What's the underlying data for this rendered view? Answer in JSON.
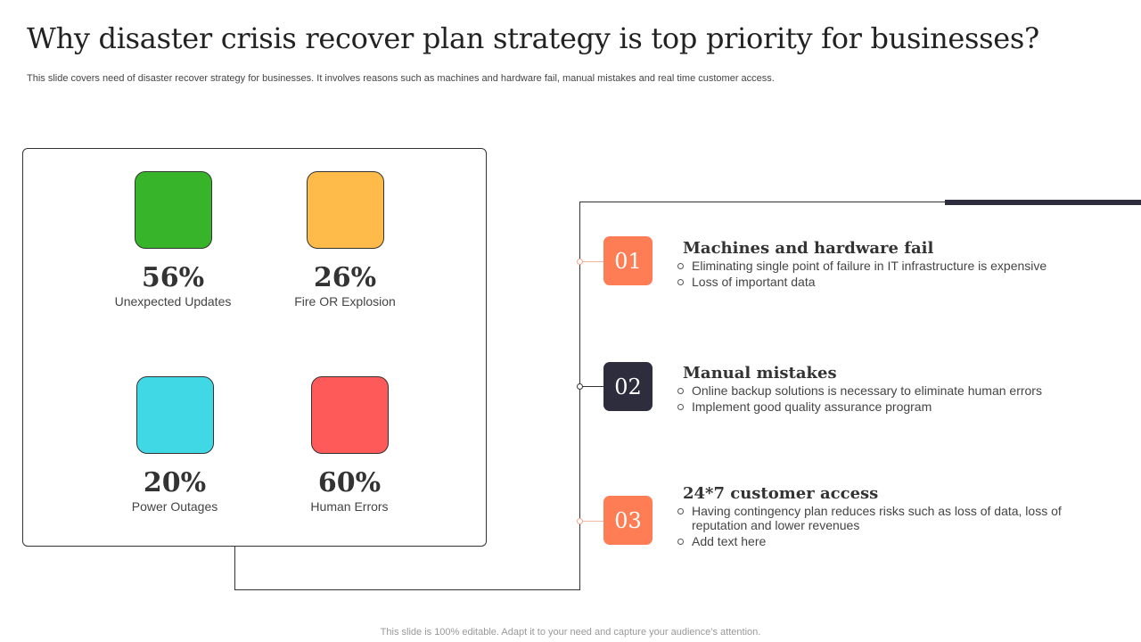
{
  "header": {
    "title": "Why disaster crisis recover plan strategy is top priority for businesses?",
    "subtitle": "This slide covers need of disaster recover strategy for businesses. It involves reasons such as machines and hardware fail, manual mistakes and real time customer access."
  },
  "stats": [
    {
      "value": "56%",
      "label": "Unexpected Updates",
      "color": "#38b42a"
    },
    {
      "value": "26%",
      "label": "Fire OR Explosion",
      "color": "#ffbb4a"
    },
    {
      "value": "20%",
      "label": "Power Outages",
      "color": "#41d8e5"
    },
    {
      "value": "60%",
      "label": "Human Errors",
      "color": "#ff5a5a"
    }
  ],
  "reasons": [
    {
      "number": "01",
      "title": "Machines and hardware fail",
      "color": "#ff7d55",
      "bullets": [
        "Eliminating single point of failure in IT infrastructure is expensive",
        "Loss of important data"
      ]
    },
    {
      "number": "02",
      "title": "Manual mistakes",
      "color": "#2e2d3d",
      "bullets": [
        "Online backup solutions is necessary to eliminate human errors",
        "Implement good quality assurance program"
      ]
    },
    {
      "number": "03",
      "title": "24*7 customer access",
      "color": "#ff7d55",
      "bullets": [
        "Having contingency plan reduces risks such as loss of data, loss of reputation and lower revenues",
        "Add text here"
      ]
    }
  ],
  "footer": "This slide is 100% editable. Adapt it to your need and capture your audience’s attention."
}
